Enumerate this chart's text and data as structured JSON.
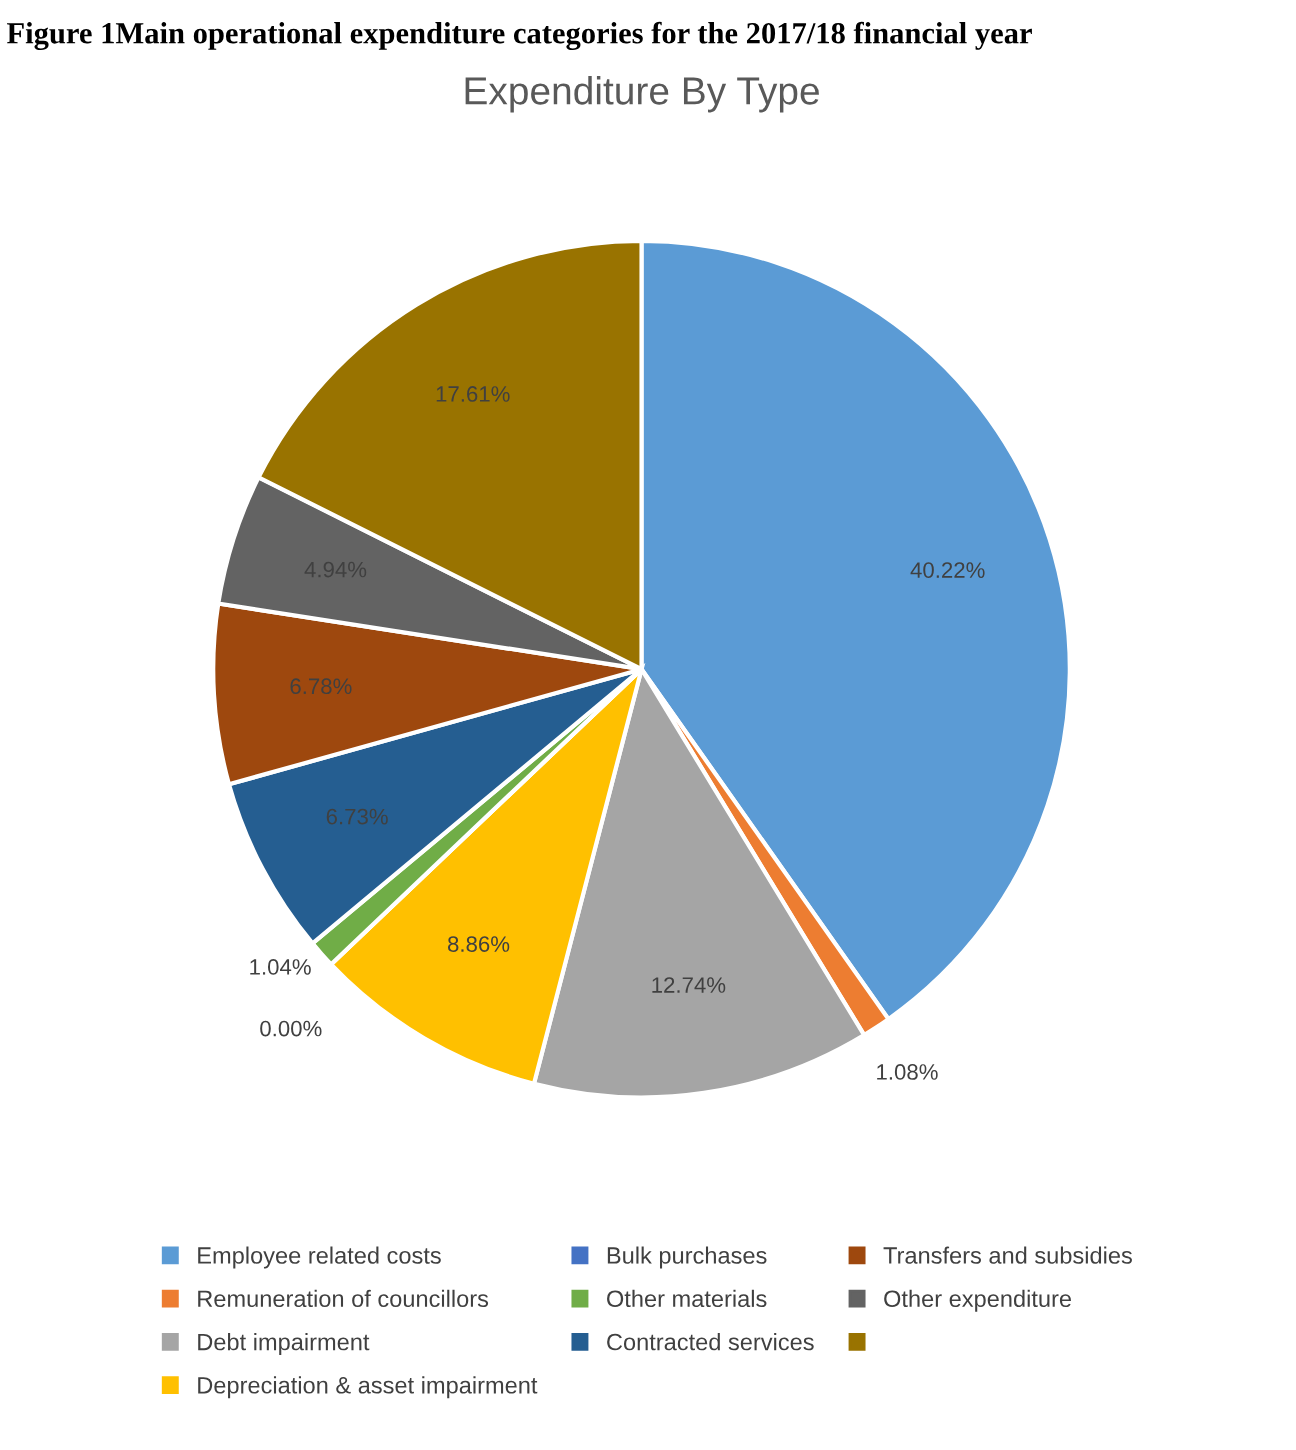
{
  "chart_data": {
    "type": "pie",
    "title": "Figure 1Main operational expenditure categories for the 2017/18 financial year",
    "subtitle": "Expenditure By Type",
    "categories": [
      "Employee related costs",
      "Remuneration of councillors",
      "Debt impairment",
      "Depreciation & asset impairment",
      "Bulk purchases",
      "Other materials",
      "Contracted services",
      "Transfers and subsidies",
      "Other expenditure",
      null
    ],
    "values": [
      40.22,
      1.08,
      12.74,
      8.86,
      0.0,
      1.04,
      6.73,
      6.78,
      4.94,
      17.61
    ],
    "colors": [
      "#5b9bd5",
      "#ed7d31",
      "#a5a5a5",
      "#ffc000",
      "#4472c4",
      "#70ad47",
      "#255e91",
      "#9e480e",
      "#636363",
      "#997300"
    ],
    "value_labels": [
      "40.22%",
      "1.08%",
      "12.74%",
      "8.86%",
      "0.00%",
      "1.04%",
      "6.73%",
      "6.78%",
      "4.94%",
      "17.61%"
    ],
    "legend": "bottom"
  }
}
